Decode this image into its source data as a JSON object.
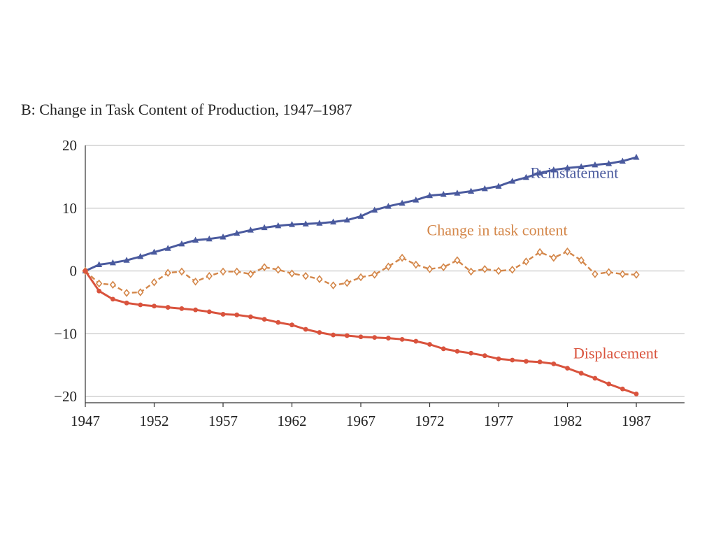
{
  "chart_data": {
    "type": "line",
    "title": "B: Change in Task Content of Production, 1947–1987",
    "xlabel": "",
    "ylabel": "",
    "xlim": [
      1947,
      1990.5
    ],
    "ylim": [
      -21,
      20
    ],
    "x_ticks": [
      1947,
      1952,
      1957,
      1962,
      1967,
      1972,
      1977,
      1982,
      1987
    ],
    "y_ticks": [
      20,
      10,
      0,
      -10,
      -20
    ],
    "y_tick_labels": [
      "20",
      "10",
      "0",
      "−10",
      "−20"
    ],
    "grid": "horizontal",
    "x": [
      1947,
      1948,
      1949,
      1950,
      1951,
      1952,
      1953,
      1954,
      1955,
      1956,
      1957,
      1958,
      1959,
      1960,
      1961,
      1962,
      1963,
      1964,
      1965,
      1966,
      1967,
      1968,
      1969,
      1970,
      1971,
      1972,
      1973,
      1974,
      1975,
      1976,
      1977,
      1978,
      1979,
      1980,
      1981,
      1982,
      1983,
      1984,
      1985,
      1986,
      1987
    ],
    "series": [
      {
        "name": "Reinstatement",
        "color": "#4a5a9e",
        "marker": "triangle",
        "dash": "solid",
        "values": [
          0,
          1.0,
          1.3,
          1.7,
          2.3,
          3.0,
          3.6,
          4.3,
          4.9,
          5.1,
          5.4,
          6.0,
          6.5,
          6.9,
          7.2,
          7.4,
          7.5,
          7.6,
          7.8,
          8.1,
          8.7,
          9.7,
          10.3,
          10.8,
          11.3,
          12.0,
          12.2,
          12.4,
          12.7,
          13.1,
          13.5,
          14.3,
          14.9,
          15.6,
          16.1,
          16.4,
          16.6,
          16.9,
          17.1,
          17.5,
          18.1
        ]
      },
      {
        "name": "Change in task content",
        "color": "#d4874a",
        "marker": "diamond-open",
        "dash": "dashed",
        "values": [
          0,
          -2.0,
          -2.2,
          -3.5,
          -3.4,
          -1.8,
          -0.3,
          -0.1,
          -1.7,
          -0.8,
          -0.1,
          -0.1,
          -0.5,
          0.6,
          0.2,
          -0.4,
          -0.8,
          -1.3,
          -2.3,
          -1.9,
          -1.0,
          -0.6,
          0.7,
          2.1,
          1.0,
          0.3,
          0.6,
          1.7,
          -0.1,
          0.3,
          0.0,
          0.2,
          1.5,
          3.0,
          2.1,
          3.1,
          1.7,
          -0.5,
          -0.2,
          -0.5,
          -0.6
        ]
      },
      {
        "name": "Displacement",
        "color": "#d9533d",
        "marker": "circle",
        "dash": "solid",
        "values": [
          0,
          -3.2,
          -4.5,
          -5.1,
          -5.4,
          -5.6,
          -5.8,
          -6.0,
          -6.2,
          -6.5,
          -6.9,
          -7.0,
          -7.3,
          -7.7,
          -8.2,
          -8.6,
          -9.3,
          -9.8,
          -10.2,
          -10.3,
          -10.5,
          -10.6,
          -10.7,
          -10.9,
          -11.2,
          -11.7,
          -12.4,
          -12.8,
          -13.1,
          -13.5,
          -14.0,
          -14.2,
          -14.4,
          -14.5,
          -14.8,
          -15.5,
          -16.3,
          -17.1,
          -18.0,
          -18.8,
          -19.6
        ]
      }
    ],
    "annotations": [
      {
        "text": "Reinstatement",
        "series": "Reinstatement",
        "near_x": 1982.5,
        "near_y": 14.8
      },
      {
        "text": "Change in task content",
        "series": "Change in task content",
        "near_x": 1976.9,
        "near_y": 5.7
      },
      {
        "text": "Displacement",
        "series": "Displacement",
        "near_x": 1985.5,
        "near_y": -13.9
      }
    ]
  }
}
